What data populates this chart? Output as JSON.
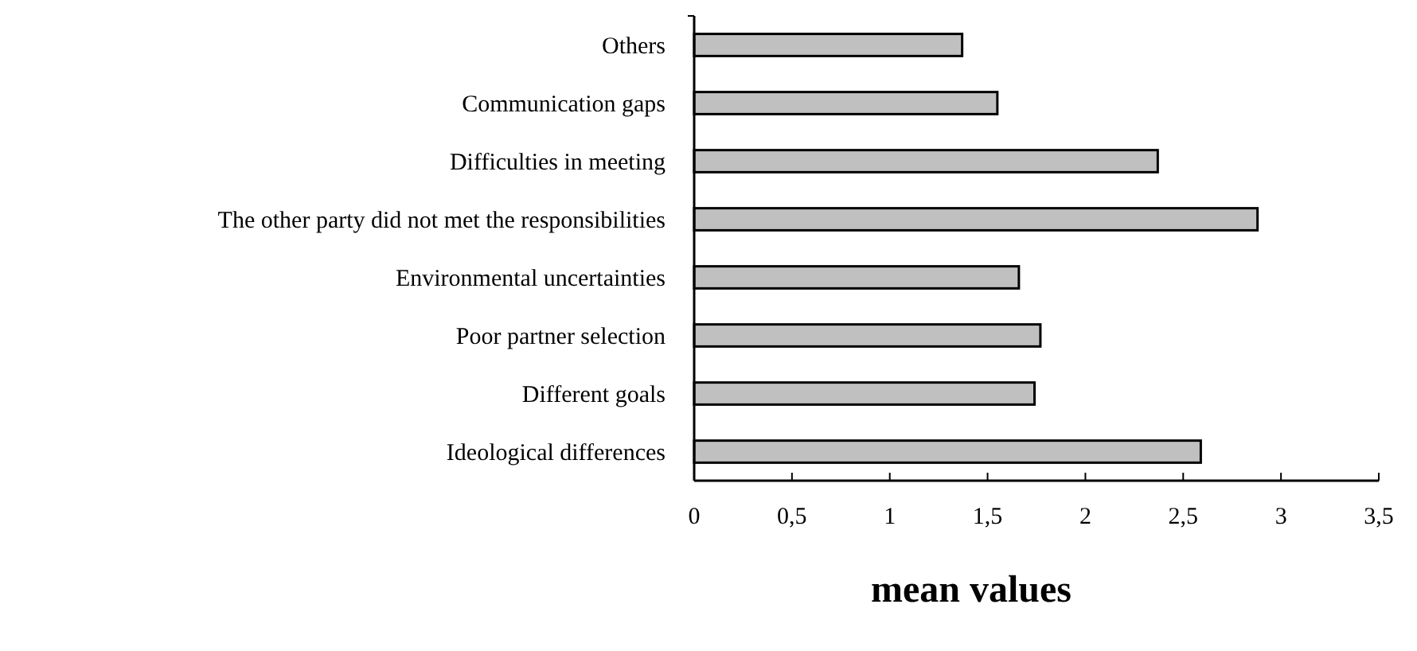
{
  "chart_data": {
    "type": "bar",
    "orientation": "horizontal",
    "xlabel": "mean values",
    "categories": [
      "Others",
      "Communication gaps",
      "Difficulties in meeting",
      "The other party did not met the responsibilities",
      "Environmental uncertainties",
      "Poor partner selection",
      "Different goals",
      "Ideological differences"
    ],
    "values": [
      1.37,
      1.55,
      2.37,
      2.88,
      1.66,
      1.77,
      1.74,
      2.59
    ],
    "color": "#c0c0c0",
    "xlim": [
      0,
      3.5
    ],
    "xticks": [
      0,
      {
        "value": 0.5,
        "label": "0,5"
      },
      1,
      {
        "value": 1.5,
        "label": "1,5"
      },
      2,
      {
        "value": 2.5,
        "label": "2,5"
      },
      3,
      {
        "value": 3.5,
        "label": "3,5"
      }
    ],
    "grid": false
  }
}
